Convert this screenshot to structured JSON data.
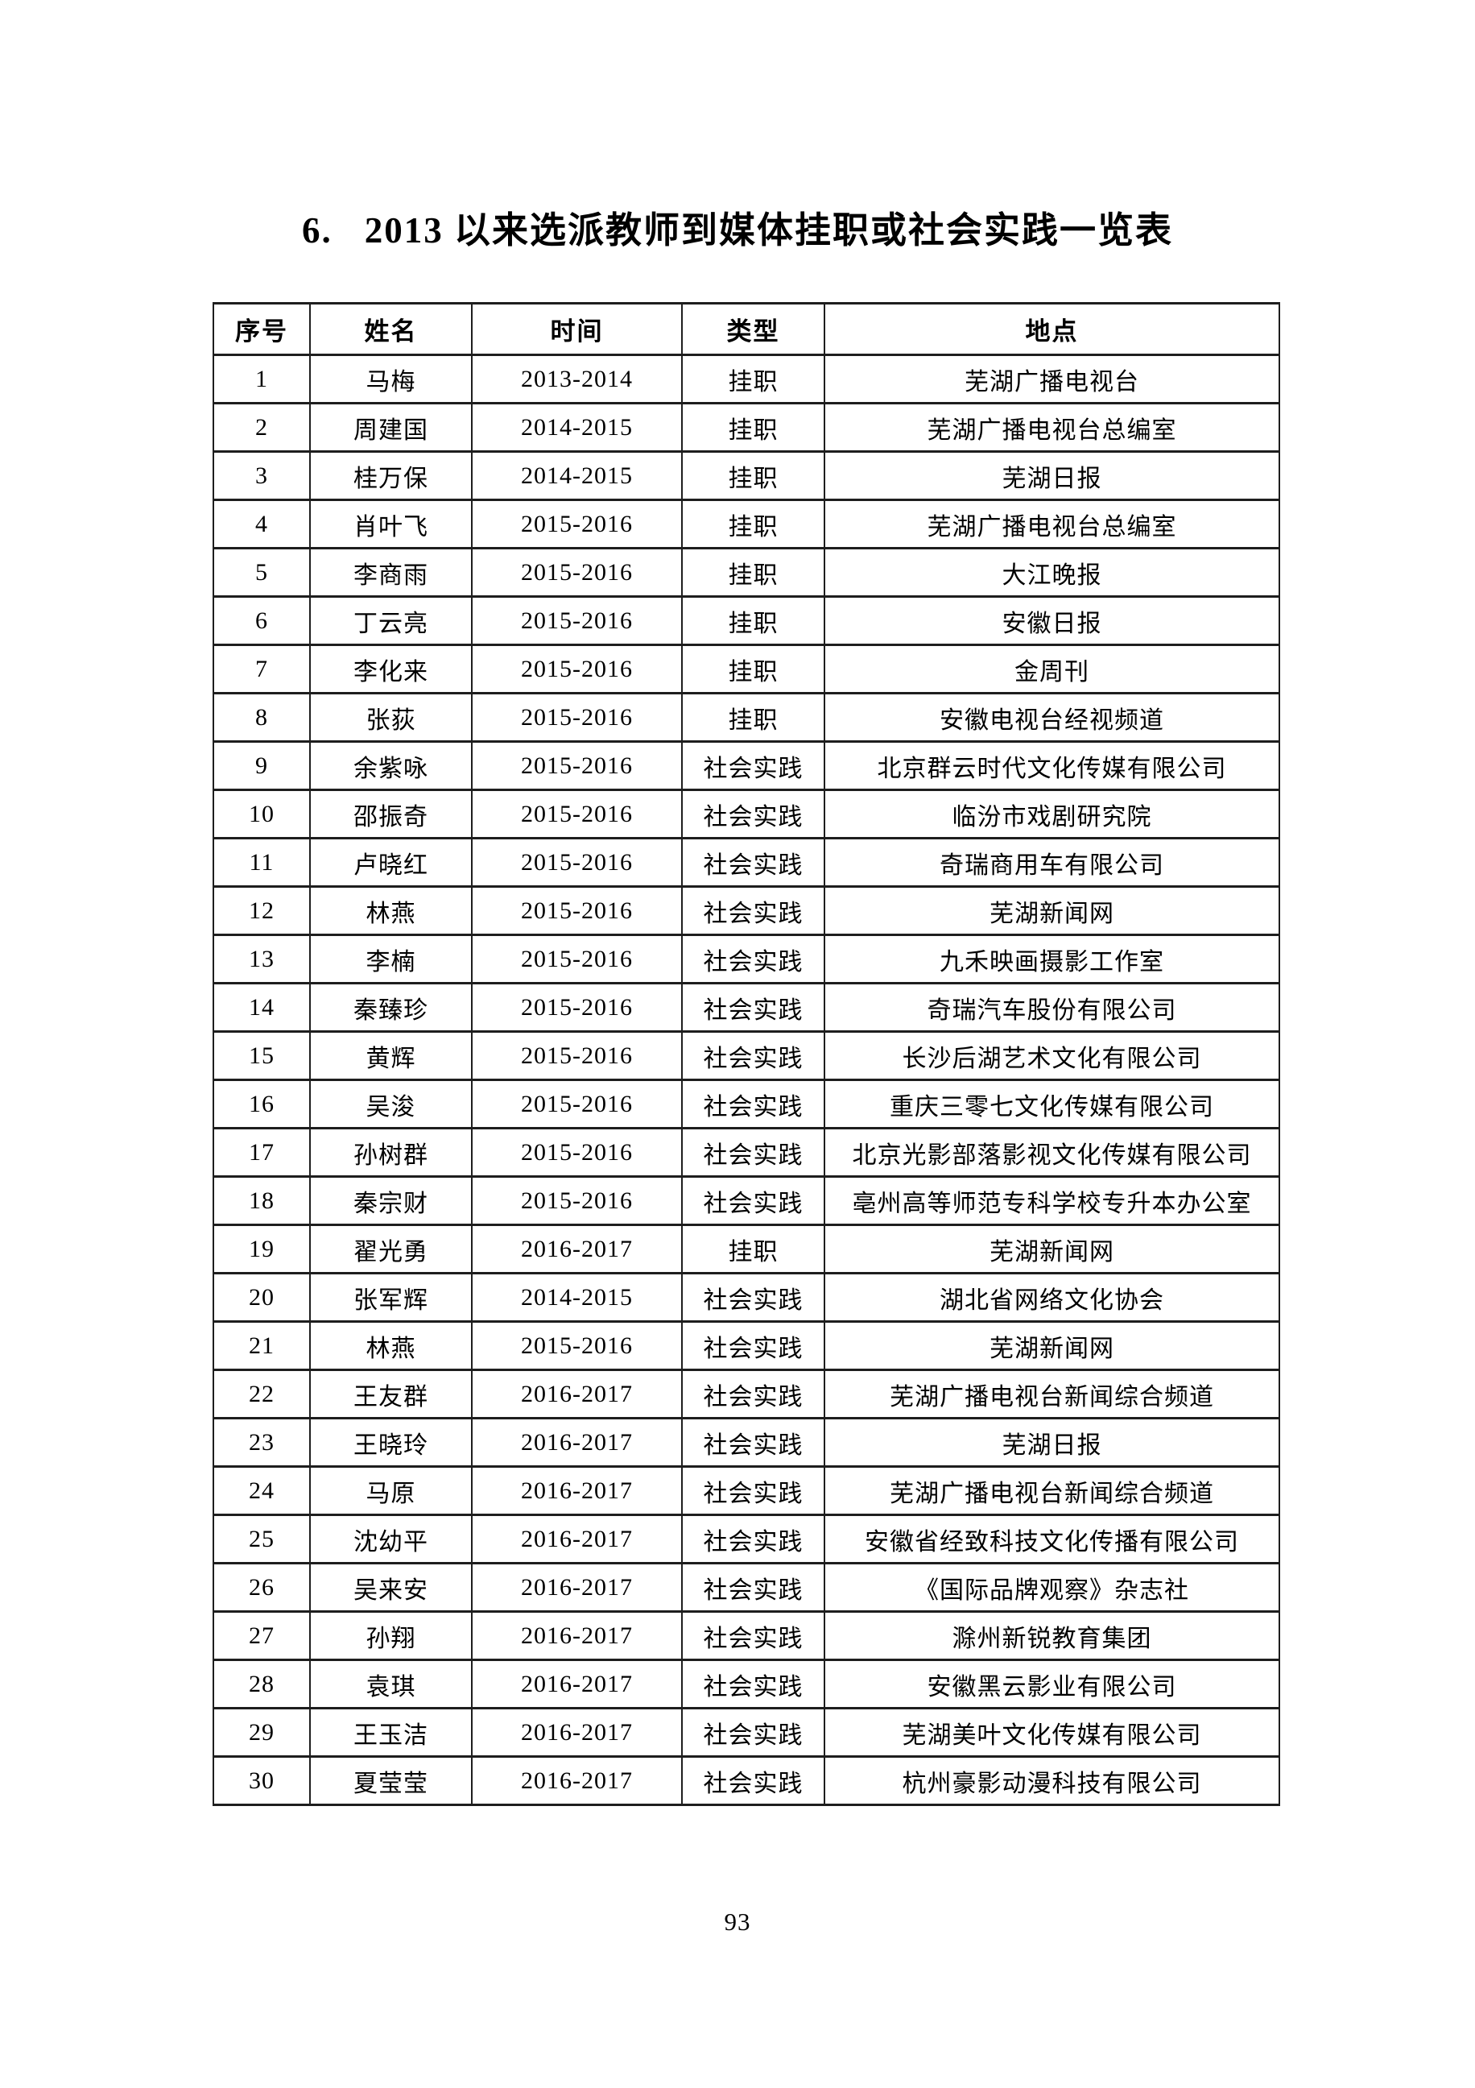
{
  "page": {
    "title_number": "6.",
    "title_text": "2013 以来选派教师到媒体挂职或社会实践一览表",
    "page_number": "93"
  },
  "table": {
    "headers": [
      "序号",
      "姓名",
      "时间",
      "类型",
      "地点"
    ],
    "rows": [
      [
        "1",
        "马梅",
        "2013-2014",
        "挂职",
        "芜湖广播电视台"
      ],
      [
        "2",
        "周建国",
        "2014-2015",
        "挂职",
        "芜湖广播电视台总编室"
      ],
      [
        "3",
        "桂万保",
        "2014-2015",
        "挂职",
        "芜湖日报"
      ],
      [
        "4",
        "肖叶飞",
        "2015-2016",
        "挂职",
        "芜湖广播电视台总编室"
      ],
      [
        "5",
        "李商雨",
        "2015-2016",
        "挂职",
        "大江晚报"
      ],
      [
        "6",
        "丁云亮",
        "2015-2016",
        "挂职",
        "安徽日报"
      ],
      [
        "7",
        "李化来",
        "2015-2016",
        "挂职",
        "金周刊"
      ],
      [
        "8",
        "张荻",
        "2015-2016",
        "挂职",
        "安徽电视台经视频道"
      ],
      [
        "9",
        "余紫咏",
        "2015-2016",
        "社会实践",
        "北京群云时代文化传媒有限公司"
      ],
      [
        "10",
        "邵振奇",
        "2015-2016",
        "社会实践",
        "临汾市戏剧研究院"
      ],
      [
        "11",
        "卢晓红",
        "2015-2016",
        "社会实践",
        "奇瑞商用车有限公司"
      ],
      [
        "12",
        "林燕",
        "2015-2016",
        "社会实践",
        "芜湖新闻网"
      ],
      [
        "13",
        "李楠",
        "2015-2016",
        "社会实践",
        "九禾映画摄影工作室"
      ],
      [
        "14",
        "秦臻珍",
        "2015-2016",
        "社会实践",
        "奇瑞汽车股份有限公司"
      ],
      [
        "15",
        "黄辉",
        "2015-2016",
        "社会实践",
        "长沙后湖艺术文化有限公司"
      ],
      [
        "16",
        "吴浚",
        "2015-2016",
        "社会实践",
        "重庆三零七文化传媒有限公司"
      ],
      [
        "17",
        "孙树群",
        "2015-2016",
        "社会实践",
        "北京光影部落影视文化传媒有限公司"
      ],
      [
        "18",
        "秦宗财",
        "2015-2016",
        "社会实践",
        "亳州高等师范专科学校专升本办公室"
      ],
      [
        "19",
        "翟光勇",
        "2016-2017",
        "挂职",
        "芜湖新闻网"
      ],
      [
        "20",
        "张军辉",
        "2014-2015",
        "社会实践",
        "湖北省网络文化协会"
      ],
      [
        "21",
        "林燕",
        "2015-2016",
        "社会实践",
        "芜湖新闻网"
      ],
      [
        "22",
        "王友群",
        "2016-2017",
        "社会实践",
        "芜湖广播电视台新闻综合频道"
      ],
      [
        "23",
        "王晓玲",
        "2016-2017",
        "社会实践",
        "芜湖日报"
      ],
      [
        "24",
        "马原",
        "2016-2017",
        "社会实践",
        "芜湖广播电视台新闻综合频道"
      ],
      [
        "25",
        "沈幼平",
        "2016-2017",
        "社会实践",
        "安徽省经致科技文化传播有限公司"
      ],
      [
        "26",
        "吴来安",
        "2016-2017",
        "社会实践",
        "《国际品牌观察》杂志社"
      ],
      [
        "27",
        "孙翔",
        "2016-2017",
        "社会实践",
        "滁州新锐教育集团"
      ],
      [
        "28",
        "袁琪",
        "2016-2017",
        "社会实践",
        "安徽黑云影业有限公司"
      ],
      [
        "29",
        "王玉洁",
        "2016-2017",
        "社会实践",
        "芜湖美叶文化传媒有限公司"
      ],
      [
        "30",
        "夏莹莹",
        "2016-2017",
        "社会实践",
        "杭州豪影动漫科技有限公司"
      ]
    ]
  }
}
